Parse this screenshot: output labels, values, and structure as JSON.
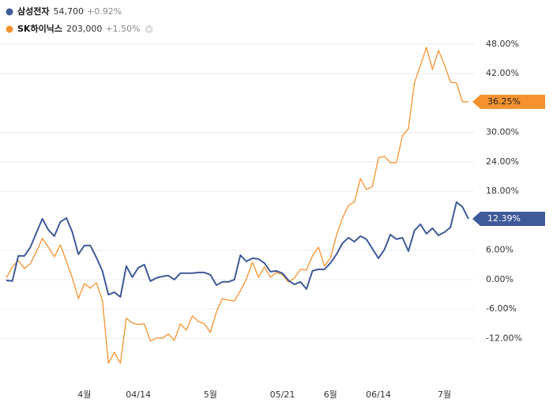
{
  "chart_data": {
    "type": "line",
    "categories": [
      null,
      null,
      null,
      null,
      null,
      null,
      null,
      null,
      null,
      null,
      null,
      null,
      null,
      "4월",
      null,
      null,
      null,
      null,
      null,
      null,
      null,
      null,
      "04/14",
      null,
      null,
      null,
      null,
      null,
      null,
      null,
      null,
      null,
      null,
      null,
      "5월",
      null,
      null,
      null,
      null,
      null,
      null,
      null,
      null,
      null,
      null,
      null,
      "05/21",
      null,
      null,
      null,
      null,
      null,
      null,
      null,
      "6월",
      null,
      null,
      null,
      null,
      null,
      null,
      null,
      "06/14",
      null,
      null,
      null,
      null,
      null,
      null,
      null,
      null,
      null,
      null,
      "7월",
      null,
      null,
      null,
      null
    ],
    "series": [
      {
        "name": "삼성전자",
        "price": "54,700",
        "change": "+0.92%",
        "color": "#3e5a99",
        "values": [
          -0.16,
          -0.32,
          4.83,
          4.83,
          6.6,
          9.5,
          12.4,
          10.15,
          8.86,
          11.76,
          12.56,
          9.66,
          5.15,
          6.93,
          6.93,
          4.51,
          1.77,
          -3.06,
          -2.58,
          -3.54,
          2.74,
          0.48,
          2.42,
          3.06,
          -0.32,
          0.32,
          0.64,
          0.81,
          0,
          1.29,
          1.29,
          1.29,
          1.45,
          1.45,
          0.97,
          -1.13,
          -0.48,
          -0.48,
          0,
          4.99,
          3.7,
          4.35,
          4.19,
          3.38,
          1.61,
          1.77,
          1.29,
          -0.16,
          -0.97,
          -0.48,
          -1.93,
          1.77,
          2.09,
          2.09,
          3.38,
          5.15,
          7.41,
          8.54,
          7.73,
          8.86,
          8.22,
          6.28,
          4.35,
          6.12,
          9.18,
          8.22,
          8.54,
          5.8,
          9.99,
          11.28,
          9.34,
          10.47,
          9.02,
          9.66,
          10.63,
          15.79,
          14.82,
          12.39
        ],
        "value_labels": [
          null,
          null,
          null,
          null,
          null,
          null,
          null,
          null,
          null,
          null,
          null,
          null,
          null,
          null,
          null,
          null,
          null,
          null,
          null,
          null,
          null,
          null,
          null,
          null,
          null,
          null,
          null,
          null,
          null,
          null,
          null,
          null,
          null,
          null,
          null,
          null,
          null,
          null,
          null,
          null,
          null,
          null,
          null,
          null,
          null,
          null,
          null,
          null,
          null,
          null,
          null,
          null,
          null,
          null,
          null,
          null,
          null,
          null,
          null,
          null,
          null,
          null,
          null,
          null,
          null,
          null,
          null,
          null,
          null,
          null,
          null,
          null,
          null,
          null,
          null,
          null,
          null,
          "12.39%"
        ]
      },
      {
        "name": "SK하이닉스",
        "price": "203,000",
        "change": "+1.50%",
        "color": "#f5922f",
        "values": [
          0.32,
          2.58,
          3.87,
          2.26,
          3.22,
          5.64,
          8.38,
          6.6,
          4.67,
          7.09,
          3.7,
          0.32,
          -3.87,
          -0.81,
          -1.77,
          -0.64,
          -4.19,
          -17.07,
          -14.82,
          -17.07,
          -7.89,
          -8.86,
          -9.18,
          -9.02,
          -12.56,
          -11.92,
          -11.92,
          -11.11,
          -12.4,
          -9.02,
          -10.31,
          -7.41,
          -8.54,
          -9.02,
          -10.79,
          -6.6,
          -3.87,
          -4.19,
          -4.35,
          -2.26,
          0.16,
          3.54,
          0.48,
          2.58,
          0.48,
          1.45,
          0.97,
          -0.48,
          0.32,
          2.09,
          1.93,
          4.83,
          6.6,
          2.74,
          4.35,
          9.02,
          12.56,
          15.14,
          15.79,
          20.62,
          18.36,
          19.01,
          24.81,
          25.13,
          23.84,
          23.84,
          29.32,
          30.77,
          40.11,
          43.65,
          47.36,
          42.85,
          46.71,
          43.81,
          40.27,
          40.11,
          36.24,
          36.25
        ],
        "value_labels": [
          null,
          null,
          null,
          null,
          null,
          null,
          null,
          null,
          null,
          null,
          null,
          null,
          null,
          null,
          null,
          null,
          null,
          null,
          null,
          null,
          null,
          null,
          null,
          null,
          null,
          null,
          null,
          null,
          null,
          null,
          null,
          null,
          null,
          null,
          null,
          null,
          null,
          null,
          null,
          null,
          null,
          null,
          null,
          null,
          null,
          null,
          null,
          null,
          null,
          null,
          null,
          null,
          null,
          null,
          null,
          null,
          null,
          null,
          null,
          null,
          null,
          null,
          null,
          null,
          null,
          null,
          null,
          null,
          null,
          null,
          null,
          null,
          null,
          null,
          null,
          null,
          null,
          "36.25%"
        ]
      }
    ],
    "ylim": [
      -20,
      50
    ],
    "yticks": [
      {
        "value": 48,
        "label": "48.00%"
      },
      {
        "value": 42,
        "label": "42.00%"
      },
      {
        "value": 30,
        "label": "30.00%"
      },
      {
        "value": 24,
        "label": "24.00%"
      },
      {
        "value": 18,
        "label": "18.00%"
      },
      {
        "value": 6,
        "label": "6.00%"
      },
      {
        "value": 0,
        "label": "0.00%"
      },
      {
        "value": -6,
        "label": "-6.00%"
      },
      {
        "value": -12,
        "label": "-12.00%"
      }
    ],
    "grid": true
  }
}
